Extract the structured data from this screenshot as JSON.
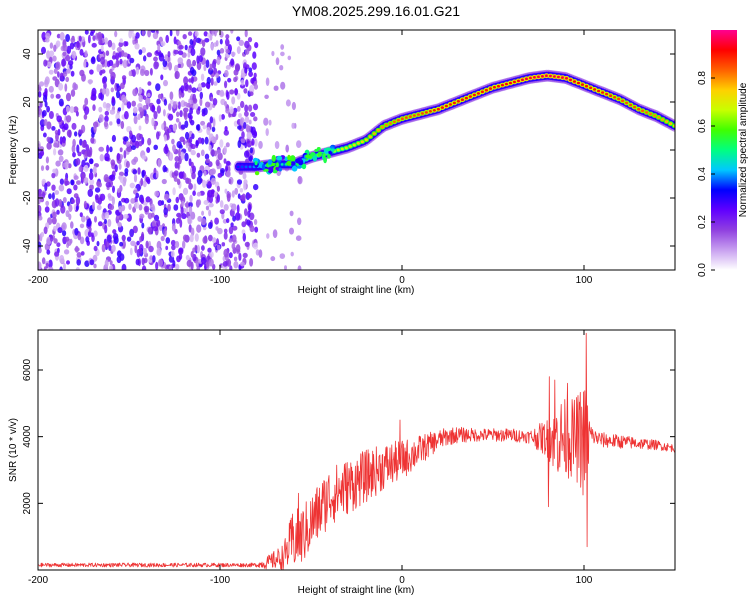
{
  "figure": {
    "title": "YM08.2025.299.16.01.G21"
  },
  "chart_data": [
    {
      "type": "heatmap",
      "name": "spectrogram",
      "xlabel": "Height of straight line (km)",
      "ylabel": "Frequency (Hz)",
      "xlim": [
        -200,
        150
      ],
      "ylim": [
        -50,
        50
      ],
      "x_ticks": [
        -200,
        -100,
        0,
        100
      ],
      "y_ticks": [
        -40,
        -20,
        0,
        20,
        40
      ],
      "colorbar": {
        "label": "Normalized spectral amplitude",
        "range": [
          0,
          1
        ],
        "ticks": [
          0.0,
          0.2,
          0.4,
          0.6,
          0.8
        ],
        "tick_labels": [
          "0.0",
          "0.2",
          "0.4",
          "0.6",
          "0.8"
        ],
        "colors": [
          "#ffffff",
          "#c8a0f0",
          "#9040e0",
          "#6000ff",
          "#0000ff",
          "#00c8ff",
          "#00ff80",
          "#40ff00",
          "#c8ff00",
          "#ffd000",
          "#ff6000",
          "#ff0000",
          "#ff0090"
        ]
      },
      "noise_region": {
        "x_range": [
          -200,
          -80
        ],
        "amplitude_range": [
          0.05,
          0.3
        ]
      },
      "main_track": {
        "x": [
          -90,
          -80,
          -70,
          -60,
          -50,
          -40,
          -30,
          -20,
          -10,
          0,
          10,
          20,
          30,
          40,
          50,
          60,
          70,
          80,
          90,
          100,
          110,
          120,
          130,
          140,
          150
        ],
        "freq": [
          -7,
          -7,
          -6,
          -6,
          -3,
          -1,
          1,
          4,
          10,
          13,
          15,
          17,
          20,
          23,
          26,
          28,
          30,
          31,
          30,
          27,
          24,
          21,
          17,
          14,
          10
        ],
        "amplitude": [
          0.35,
          0.4,
          0.45,
          0.5,
          0.6,
          0.65,
          0.7,
          0.75,
          0.8,
          0.85,
          0.85,
          0.9,
          0.9,
          0.9,
          0.9,
          0.92,
          0.95,
          0.95,
          0.95,
          0.9,
          0.9,
          0.85,
          0.85,
          0.8,
          0.75
        ]
      }
    },
    {
      "type": "line",
      "name": "snr",
      "xlabel": "Height of straight line (km)",
      "ylabel": "SNR (10 * v/v)",
      "xlim": [
        -200,
        150
      ],
      "ylim": [
        0,
        7200
      ],
      "x_ticks": [
        -200,
        -100,
        0,
        100
      ],
      "y_ticks": [
        2000,
        4000,
        6000
      ],
      "color": "#ee3333",
      "envelope": {
        "x": [
          -200,
          -80,
          -75,
          -65,
          -60,
          -55,
          -50,
          -45,
          -40,
          -30,
          -20,
          -10,
          0,
          10,
          20,
          25,
          30,
          40,
          50,
          60,
          70,
          80,
          85,
          90,
          95,
          100,
          105,
          110,
          120,
          130,
          140,
          150
        ],
        "y": [
          150,
          150,
          200,
          400,
          900,
          1000,
          1400,
          1800,
          2200,
          2500,
          2800,
          3100,
          3300,
          3600,
          3900,
          4000,
          4050,
          4050,
          4050,
          4050,
          4000,
          3950,
          4000,
          3950,
          3950,
          3900,
          4000,
          3900,
          3850,
          3800,
          3750,
          3650
        ]
      },
      "noise_amp": {
        "x": [
          -200,
          -80,
          -65,
          -60,
          -40,
          -20,
          0,
          20,
          40,
          70,
          80,
          85,
          95,
          100,
          105,
          150
        ],
        "y": [
          60,
          60,
          400,
          900,
          900,
          800,
          600,
          300,
          200,
          200,
          600,
          1200,
          1200,
          1800,
          250,
          120
        ]
      },
      "spikes": [
        {
          "x": 101.2,
          "y": 7100
        },
        {
          "x": 101.8,
          "y": 700
        },
        {
          "x": -1,
          "y": 4500
        },
        {
          "x": 81,
          "y": 5800
        },
        {
          "x": 80.5,
          "y": 1900
        },
        {
          "x": -57,
          "y": 2300
        },
        {
          "x": 84,
          "y": 5700
        },
        {
          "x": 91,
          "y": 5600
        }
      ]
    }
  ]
}
